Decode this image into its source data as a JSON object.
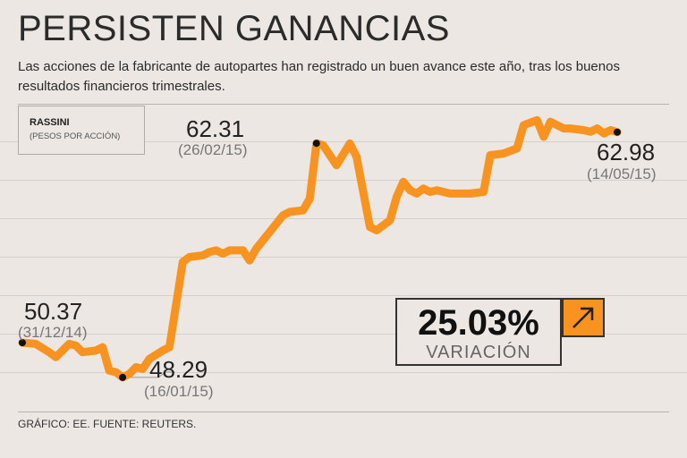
{
  "header": {
    "title": "PERSISTEN GANANCIAS",
    "subtitle": "Las acciones de la fabricante de autopartes han registrado un buen avance este año, tras los buenos resultados financieros trimestrales."
  },
  "legend": {
    "ticker": "RASSINI",
    "unit": "(PESOS POR ACCIÓN)"
  },
  "annotations": {
    "start": {
      "value": "50.37",
      "date": "(31/12/14)"
    },
    "low": {
      "value": "48.29",
      "date": "(16/01/15)"
    },
    "peak": {
      "value": "62.31",
      "date": "(26/02/15)"
    },
    "end": {
      "value": "62.98",
      "date": "(14/05/15)"
    }
  },
  "variation": {
    "value": "25.03%",
    "label": "VARIACIÓN",
    "icon": "arrow-up-right-icon"
  },
  "footer": {
    "source": "GRÁFICO: EE. FUENTE: REUTERS."
  },
  "colors": {
    "line": "#f7931e",
    "background": "#ece7e2",
    "point": "#111111"
  },
  "chart_data": {
    "type": "line",
    "title": "PERSISTEN GANANCIAS",
    "series_name": "RASSINI",
    "ylabel": "(PESOS POR ACCIÓN)",
    "xlabel": "",
    "ylim": [
      47,
      65
    ],
    "x_index_range": [
      0,
      90
    ],
    "points": [
      [
        0,
        50.37
      ],
      [
        2,
        50.3
      ],
      [
        4,
        49.8
      ],
      [
        5,
        49.5
      ],
      [
        7,
        50.3
      ],
      [
        8,
        50.2
      ],
      [
        9,
        49.8
      ],
      [
        11,
        49.9
      ],
      [
        12,
        50.1
      ],
      [
        13,
        48.7
      ],
      [
        14,
        48.6
      ],
      [
        15,
        48.29
      ],
      [
        16,
        48.5
      ],
      [
        17,
        48.9
      ],
      [
        18,
        48.8
      ],
      [
        19,
        49.4
      ],
      [
        21,
        49.9
      ],
      [
        22,
        50.1
      ],
      [
        24,
        55.2
      ],
      [
        25,
        55.5
      ],
      [
        27,
        55.6
      ],
      [
        28,
        55.8
      ],
      [
        29,
        55.9
      ],
      [
        30,
        55.7
      ],
      [
        31,
        55.9
      ],
      [
        33,
        55.9
      ],
      [
        34,
        55.3
      ],
      [
        35,
        56.0
      ],
      [
        37,
        57.0
      ],
      [
        39,
        58.0
      ],
      [
        40,
        58.2
      ],
      [
        42,
        58.3
      ],
      [
        43,
        59.0
      ],
      [
        44,
        62.31
      ],
      [
        45,
        62.2
      ],
      [
        47,
        61.0
      ],
      [
        49,
        62.3
      ],
      [
        50,
        61.5
      ],
      [
        52,
        57.3
      ],
      [
        53,
        57.1
      ],
      [
        54,
        57.4
      ],
      [
        55,
        57.7
      ],
      [
        56,
        59.1
      ],
      [
        57,
        60.0
      ],
      [
        58,
        59.5
      ],
      [
        59,
        59.3
      ],
      [
        60,
        59.6
      ],
      [
        61,
        59.4
      ],
      [
        62,
        59.5
      ],
      [
        64,
        59.3
      ],
      [
        67,
        59.3
      ],
      [
        69,
        59.4
      ],
      [
        70,
        61.6
      ],
      [
        72,
        61.7
      ],
      [
        74,
        62.0
      ],
      [
        75,
        63.4
      ],
      [
        77,
        63.7
      ],
      [
        78,
        62.7
      ],
      [
        79,
        63.6
      ],
      [
        80,
        63.4
      ],
      [
        81,
        63.2
      ],
      [
        82,
        63.2
      ],
      [
        84,
        63.1
      ],
      [
        85,
        63.0
      ],
      [
        86,
        63.2
      ],
      [
        87,
        62.9
      ],
      [
        88,
        63.1
      ],
      [
        89,
        62.98
      ]
    ],
    "annotated_points": [
      {
        "index": 0,
        "value": 50.37,
        "date": "31/12/14"
      },
      {
        "index": 15,
        "value": 48.29,
        "date": "16/01/15"
      },
      {
        "index": 44,
        "value": 62.31,
        "date": "26/02/15"
      },
      {
        "index": 89,
        "value": 62.98,
        "date": "14/05/15"
      }
    ],
    "variation_percent": 25.03
  }
}
